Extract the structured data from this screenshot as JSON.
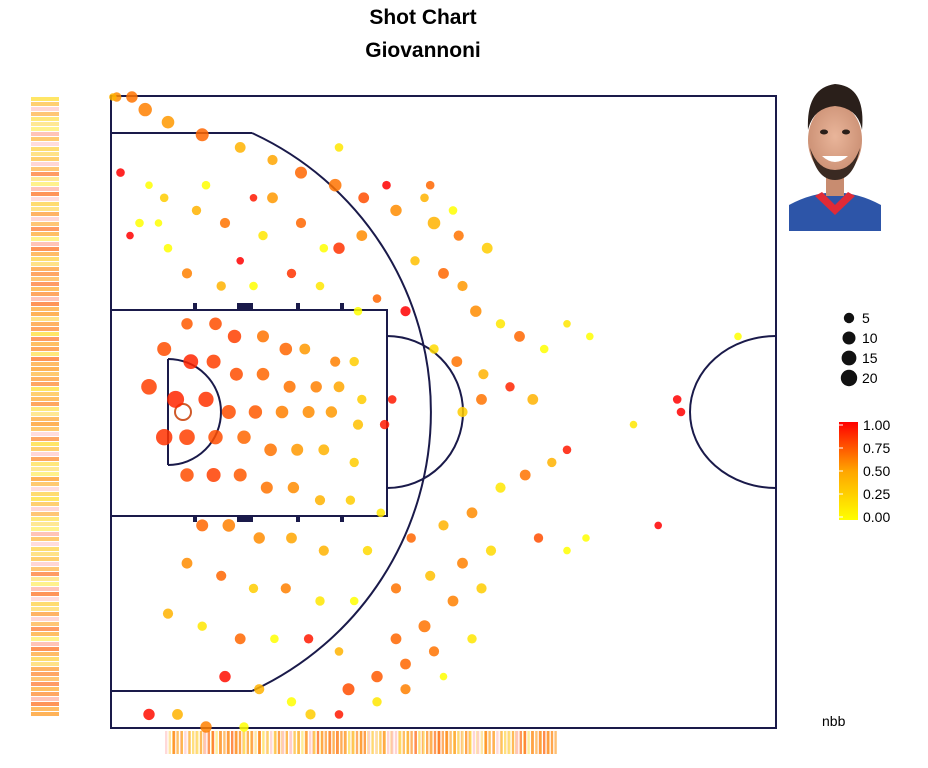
{
  "chart_data": {
    "type": "scatter",
    "title": "Shot Chart",
    "subtitle": "Giovannoni",
    "caption": "nbb",
    "size_legend": {
      "values": [
        5,
        10,
        15,
        20
      ]
    },
    "color_legend": {
      "ticks": [
        "1.00",
        "0.75",
        "0.50",
        "0.25",
        "0.00"
      ],
      "low_color": "#ffff00",
      "high_color": "#ff0000"
    },
    "player_photo": "player-headshot",
    "grid": false,
    "points": [
      {
        "x": 3,
        "y": -25,
        "count": 4,
        "pct": 0.45
      },
      {
        "x": 11,
        "y": -25,
        "count": 7,
        "pct": 0.55
      },
      {
        "x": 18,
        "y": -24,
        "count": 11,
        "pct": 0.5
      },
      {
        "x": 30,
        "y": -23,
        "count": 9,
        "pct": 0.4
      },
      {
        "x": 48,
        "y": -22,
        "count": 10,
        "pct": 0.6
      },
      {
        "x": 68,
        "y": -21,
        "count": 6,
        "pct": 0.3
      },
      {
        "x": 85,
        "y": -20,
        "count": 5,
        "pct": 0.35
      },
      {
        "x": 100,
        "y": -19,
        "count": 8,
        "pct": 0.6
      },
      {
        "x": 118,
        "y": -18,
        "count": 9,
        "pct": 0.55
      },
      {
        "x": 133,
        "y": -17,
        "count": 6,
        "pct": 0.7
      },
      {
        "x": 150,
        "y": -16,
        "count": 7,
        "pct": 0.45
      },
      {
        "x": 170,
        "y": -15,
        "count": 9,
        "pct": 0.3
      },
      {
        "x": 183,
        "y": -14,
        "count": 5,
        "pct": 0.55
      },
      {
        "x": 198,
        "y": -13,
        "count": 6,
        "pct": 0.2
      },
      {
        "x": 50,
        "y": -18,
        "count": 3,
        "pct": 0.0
      },
      {
        "x": 75,
        "y": -17,
        "count": 2,
        "pct": 0.9
      },
      {
        "x": 85,
        "y": -17,
        "count": 6,
        "pct": 0.4
      },
      {
        "x": 120,
        "y": -13,
        "count": 7,
        "pct": 0.8
      },
      {
        "x": 140,
        "y": -9,
        "count": 3,
        "pct": 0.6
      },
      {
        "x": 155,
        "y": -8,
        "count": 5,
        "pct": 1.0
      },
      {
        "x": 5,
        "y": -19,
        "count": 3,
        "pct": 1.0
      },
      {
        "x": 20,
        "y": -18,
        "count": 2,
        "pct": 0.0
      },
      {
        "x": 28,
        "y": -17,
        "count": 3,
        "pct": 0.2
      },
      {
        "x": 45,
        "y": -16,
        "count": 4,
        "pct": 0.3
      },
      {
        "x": 60,
        "y": -15,
        "count": 5,
        "pct": 0.55
      },
      {
        "x": 80,
        "y": -14,
        "count": 4,
        "pct": 0.1
      },
      {
        "x": 100,
        "y": -15,
        "count": 5,
        "pct": 0.6
      },
      {
        "x": 112,
        "y": -13,
        "count": 3,
        "pct": 0.0
      },
      {
        "x": 132,
        "y": -14,
        "count": 6,
        "pct": 0.45
      },
      {
        "x": 160,
        "y": -12,
        "count": 4,
        "pct": 0.25
      },
      {
        "x": 175,
        "y": -11,
        "count": 6,
        "pct": 0.6
      },
      {
        "x": 185,
        "y": -10,
        "count": 5,
        "pct": 0.4
      },
      {
        "x": 192,
        "y": -8,
        "count": 7,
        "pct": 0.45
      },
      {
        "x": 205,
        "y": -7,
        "count": 4,
        "pct": 0.1
      },
      {
        "x": 215,
        "y": -6,
        "count": 6,
        "pct": 0.6
      },
      {
        "x": 228,
        "y": -5,
        "count": 3,
        "pct": 0.0
      },
      {
        "x": 10,
        "y": -14,
        "count": 2,
        "pct": 1.0
      },
      {
        "x": 30,
        "y": -13,
        "count": 3,
        "pct": 0.0
      },
      {
        "x": 40,
        "y": -11,
        "count": 5,
        "pct": 0.5
      },
      {
        "x": 58,
        "y": -10,
        "count": 4,
        "pct": 0.3
      },
      {
        "x": 68,
        "y": -12,
        "count": 2,
        "pct": 1.0
      },
      {
        "x": 75,
        "y": -10,
        "count": 3,
        "pct": 0.0
      },
      {
        "x": 95,
        "y": -11,
        "count": 4,
        "pct": 0.8
      },
      {
        "x": 110,
        "y": -10,
        "count": 3,
        "pct": 0.1
      },
      {
        "x": 130,
        "y": -8,
        "count": 3,
        "pct": 0.0
      },
      {
        "x": 170,
        "y": -5,
        "count": 4,
        "pct": 0.15
      },
      {
        "x": 182,
        "y": -4,
        "count": 6,
        "pct": 0.55
      },
      {
        "x": 196,
        "y": -3,
        "count": 5,
        "pct": 0.3
      },
      {
        "x": 210,
        "y": -2,
        "count": 4,
        "pct": 0.85
      },
      {
        "x": 222,
        "y": -1,
        "count": 6,
        "pct": 0.3
      },
      {
        "x": 195,
        "y": -1,
        "count": 6,
        "pct": 0.55
      },
      {
        "x": 185,
        "y": 0,
        "count": 5,
        "pct": 0.2
      },
      {
        "x": 40,
        "y": -7,
        "count": 7,
        "pct": 0.65
      },
      {
        "x": 55,
        "y": -7,
        "count": 9,
        "pct": 0.7
      },
      {
        "x": 65,
        "y": -6,
        "count": 11,
        "pct": 0.75
      },
      {
        "x": 80,
        "y": -6,
        "count": 8,
        "pct": 0.55
      },
      {
        "x": 92,
        "y": -5,
        "count": 9,
        "pct": 0.6
      },
      {
        "x": 102,
        "y": -5,
        "count": 6,
        "pct": 0.4
      },
      {
        "x": 118,
        "y": -4,
        "count": 5,
        "pct": 0.5
      },
      {
        "x": 128,
        "y": -4,
        "count": 4,
        "pct": 0.2
      },
      {
        "x": 28,
        "y": -5,
        "count": 12,
        "pct": 0.7
      },
      {
        "x": 42,
        "y": -4,
        "count": 14,
        "pct": 0.85
      },
      {
        "x": 54,
        "y": -4,
        "count": 12,
        "pct": 0.75
      },
      {
        "x": 66,
        "y": -3,
        "count": 10,
        "pct": 0.7
      },
      {
        "x": 80,
        "y": -3,
        "count": 9,
        "pct": 0.6
      },
      {
        "x": 94,
        "y": -2,
        "count": 8,
        "pct": 0.55
      },
      {
        "x": 108,
        "y": -2,
        "count": 7,
        "pct": 0.5
      },
      {
        "x": 120,
        "y": -2,
        "count": 6,
        "pct": 0.35
      },
      {
        "x": 132,
        "y": -1,
        "count": 4,
        "pct": 0.2
      },
      {
        "x": 148,
        "y": -1,
        "count": 3,
        "pct": 0.9
      },
      {
        "x": 20,
        "y": -2,
        "count": 16,
        "pct": 0.75
      },
      {
        "x": 34,
        "y": -1,
        "count": 20,
        "pct": 0.85
      },
      {
        "x": 50,
        "y": -1,
        "count": 15,
        "pct": 0.8
      },
      {
        "x": 62,
        "y": 0,
        "count": 12,
        "pct": 0.7
      },
      {
        "x": 76,
        "y": 0,
        "count": 11,
        "pct": 0.65
      },
      {
        "x": 90,
        "y": 0,
        "count": 9,
        "pct": 0.5
      },
      {
        "x": 104,
        "y": 0,
        "count": 8,
        "pct": 0.45
      },
      {
        "x": 116,
        "y": 0,
        "count": 7,
        "pct": 0.4
      },
      {
        "x": 130,
        "y": 1,
        "count": 5,
        "pct": 0.25
      },
      {
        "x": 144,
        "y": 1,
        "count": 4,
        "pct": 0.9
      },
      {
        "x": 28,
        "y": 2,
        "count": 18,
        "pct": 0.8
      },
      {
        "x": 40,
        "y": 2,
        "count": 16,
        "pct": 0.75
      },
      {
        "x": 55,
        "y": 2,
        "count": 13,
        "pct": 0.7
      },
      {
        "x": 70,
        "y": 2,
        "count": 11,
        "pct": 0.6
      },
      {
        "x": 84,
        "y": 3,
        "count": 9,
        "pct": 0.55
      },
      {
        "x": 98,
        "y": 3,
        "count": 8,
        "pct": 0.4
      },
      {
        "x": 112,
        "y": 3,
        "count": 6,
        "pct": 0.3
      },
      {
        "x": 128,
        "y": 4,
        "count": 4,
        "pct": 0.2
      },
      {
        "x": 40,
        "y": 5,
        "count": 11,
        "pct": 0.7
      },
      {
        "x": 54,
        "y": 5,
        "count": 12,
        "pct": 0.75
      },
      {
        "x": 68,
        "y": 5,
        "count": 10,
        "pct": 0.65
      },
      {
        "x": 82,
        "y": 6,
        "count": 8,
        "pct": 0.55
      },
      {
        "x": 96,
        "y": 6,
        "count": 7,
        "pct": 0.45
      },
      {
        "x": 110,
        "y": 7,
        "count": 5,
        "pct": 0.3
      },
      {
        "x": 126,
        "y": 7,
        "count": 4,
        "pct": 0.2
      },
      {
        "x": 142,
        "y": 8,
        "count": 3,
        "pct": 0.1
      },
      {
        "x": 48,
        "y": 9,
        "count": 8,
        "pct": 0.6
      },
      {
        "x": 62,
        "y": 9,
        "count": 9,
        "pct": 0.5
      },
      {
        "x": 78,
        "y": 10,
        "count": 7,
        "pct": 0.45
      },
      {
        "x": 95,
        "y": 10,
        "count": 6,
        "pct": 0.35
      },
      {
        "x": 112,
        "y": 11,
        "count": 5,
        "pct": 0.3
      },
      {
        "x": 135,
        "y": 11,
        "count": 4,
        "pct": 0.15
      },
      {
        "x": 158,
        "y": 10,
        "count": 4,
        "pct": 0.6
      },
      {
        "x": 175,
        "y": 9,
        "count": 5,
        "pct": 0.3
      },
      {
        "x": 190,
        "y": 8,
        "count": 6,
        "pct": 0.45
      },
      {
        "x": 205,
        "y": 6,
        "count": 5,
        "pct": 0.1
      },
      {
        "x": 218,
        "y": 5,
        "count": 6,
        "pct": 0.55
      },
      {
        "x": 232,
        "y": 4,
        "count": 4,
        "pct": 0.3
      },
      {
        "x": 240,
        "y": 3,
        "count": 3,
        "pct": 0.9
      },
      {
        "x": 40,
        "y": 12,
        "count": 6,
        "pct": 0.45
      },
      {
        "x": 58,
        "y": 13,
        "count": 5,
        "pct": 0.6
      },
      {
        "x": 75,
        "y": 14,
        "count": 4,
        "pct": 0.2
      },
      {
        "x": 92,
        "y": 14,
        "count": 5,
        "pct": 0.5
      },
      {
        "x": 110,
        "y": 15,
        "count": 4,
        "pct": 0.1
      },
      {
        "x": 128,
        "y": 15,
        "count": 3,
        "pct": 0.0
      },
      {
        "x": 150,
        "y": 14,
        "count": 5,
        "pct": 0.55
      },
      {
        "x": 168,
        "y": 13,
        "count": 5,
        "pct": 0.25
      },
      {
        "x": 185,
        "y": 12,
        "count": 6,
        "pct": 0.5
      },
      {
        "x": 200,
        "y": 11,
        "count": 5,
        "pct": 0.15
      },
      {
        "x": 225,
        "y": 10,
        "count": 4,
        "pct": 0.7
      },
      {
        "x": 30,
        "y": 16,
        "count": 5,
        "pct": 0.3
      },
      {
        "x": 48,
        "y": 17,
        "count": 4,
        "pct": 0.1
      },
      {
        "x": 68,
        "y": 18,
        "count": 6,
        "pct": 0.6
      },
      {
        "x": 86,
        "y": 18,
        "count": 3,
        "pct": 0.0
      },
      {
        "x": 104,
        "y": 18,
        "count": 4,
        "pct": 0.9
      },
      {
        "x": 120,
        "y": 19,
        "count": 3,
        "pct": 0.3
      },
      {
        "x": 150,
        "y": 18,
        "count": 6,
        "pct": 0.6
      },
      {
        "x": 165,
        "y": 17,
        "count": 8,
        "pct": 0.55
      },
      {
        "x": 180,
        "y": 15,
        "count": 6,
        "pct": 0.5
      },
      {
        "x": 195,
        "y": 14,
        "count": 5,
        "pct": 0.2
      },
      {
        "x": 60,
        "y": 21,
        "count": 7,
        "pct": 0.95
      },
      {
        "x": 78,
        "y": 22,
        "count": 5,
        "pct": 0.3
      },
      {
        "x": 95,
        "y": 23,
        "count": 4,
        "pct": 0.0
      },
      {
        "x": 125,
        "y": 22,
        "count": 8,
        "pct": 0.7
      },
      {
        "x": 140,
        "y": 21,
        "count": 7,
        "pct": 0.65
      },
      {
        "x": 155,
        "y": 20,
        "count": 6,
        "pct": 0.6
      },
      {
        "x": 170,
        "y": 19,
        "count": 5,
        "pct": 0.55
      },
      {
        "x": 190,
        "y": 18,
        "count": 4,
        "pct": 0.1
      },
      {
        "x": 20,
        "y": 24,
        "count": 7,
        "pct": 0.95
      },
      {
        "x": 35,
        "y": 24,
        "count": 6,
        "pct": 0.3
      },
      {
        "x": 50,
        "y": 25,
        "count": 7,
        "pct": 0.5
      },
      {
        "x": 70,
        "y": 25,
        "count": 4,
        "pct": 0.0
      },
      {
        "x": 105,
        "y": 24,
        "count": 5,
        "pct": 0.2
      },
      {
        "x": 120,
        "y": 24,
        "count": 3,
        "pct": 0.9
      },
      {
        "x": 140,
        "y": 23,
        "count": 4,
        "pct": 0.1
      },
      {
        "x": 155,
        "y": 22,
        "count": 5,
        "pct": 0.5
      },
      {
        "x": 1,
        "y": -25,
        "count": 2,
        "pct": 0.3
      },
      {
        "x": 15,
        "y": -15,
        "count": 3,
        "pct": 0.0
      },
      {
        "x": 25,
        "y": -15,
        "count": 2,
        "pct": 0.0
      },
      {
        "x": 240,
        "y": -7,
        "count": 2,
        "pct": 0.1
      },
      {
        "x": 252,
        "y": -6,
        "count": 2,
        "pct": 0.0
      },
      {
        "x": 330,
        "y": -6,
        "count": 2,
        "pct": 0.0
      },
      {
        "x": 298,
        "y": -1,
        "count": 3,
        "pct": 1.0
      },
      {
        "x": 300,
        "y": 0,
        "count": 3,
        "pct": 1.0
      },
      {
        "x": 275,
        "y": 1,
        "count": 2,
        "pct": 0.1
      },
      {
        "x": 288,
        "y": 9,
        "count": 2,
        "pct": 1.0
      },
      {
        "x": 240,
        "y": 11,
        "count": 2,
        "pct": 0.0
      },
      {
        "x": 250,
        "y": 10,
        "count": 2,
        "pct": 0.0
      },
      {
        "x": 175,
        "y": 21,
        "count": 2,
        "pct": 0.0
      },
      {
        "x": 120,
        "y": -21,
        "count": 3,
        "pct": 0.1
      },
      {
        "x": 145,
        "y": -18,
        "count": 3,
        "pct": 1.0
      },
      {
        "x": 165,
        "y": -17,
        "count": 3,
        "pct": 0.3
      },
      {
        "x": 168,
        "y": -18,
        "count": 3,
        "pct": 0.6
      },
      {
        "x": 180,
        "y": -16,
        "count": 3,
        "pct": 0.0
      }
    ],
    "rug_left_colors": [
      "#ffdd33",
      "#ffb347",
      "#ff8a2b",
      "#ffee66",
      "#ffa533",
      "#ffd0d0",
      "#ff9a30",
      "#ffc040",
      "#ff7a30",
      "#ffe050",
      "#ffb0a0",
      "#ff9a20",
      "#ffd040",
      "#ff8830",
      "#ffc8c8",
      "#ffaa30",
      "#ffe070",
      "#ff7020",
      "#ffb840",
      "#ffd860"
    ],
    "rug_bottom_colors": [
      "#ffd0d0",
      "#ffa040",
      "#ff9020",
      "#ffc040",
      "#ff8030",
      "#ffe060",
      "#ffb040",
      "#ff7020",
      "#ffd050",
      "#ffaa30",
      "#ff9830",
      "#ffe090",
      "#ffc8c8",
      "#ffb050",
      "#ff8a20",
      "#ffd860",
      "#ffa030",
      "#ffcccc",
      "#ffe880",
      "#ff9a40"
    ]
  }
}
